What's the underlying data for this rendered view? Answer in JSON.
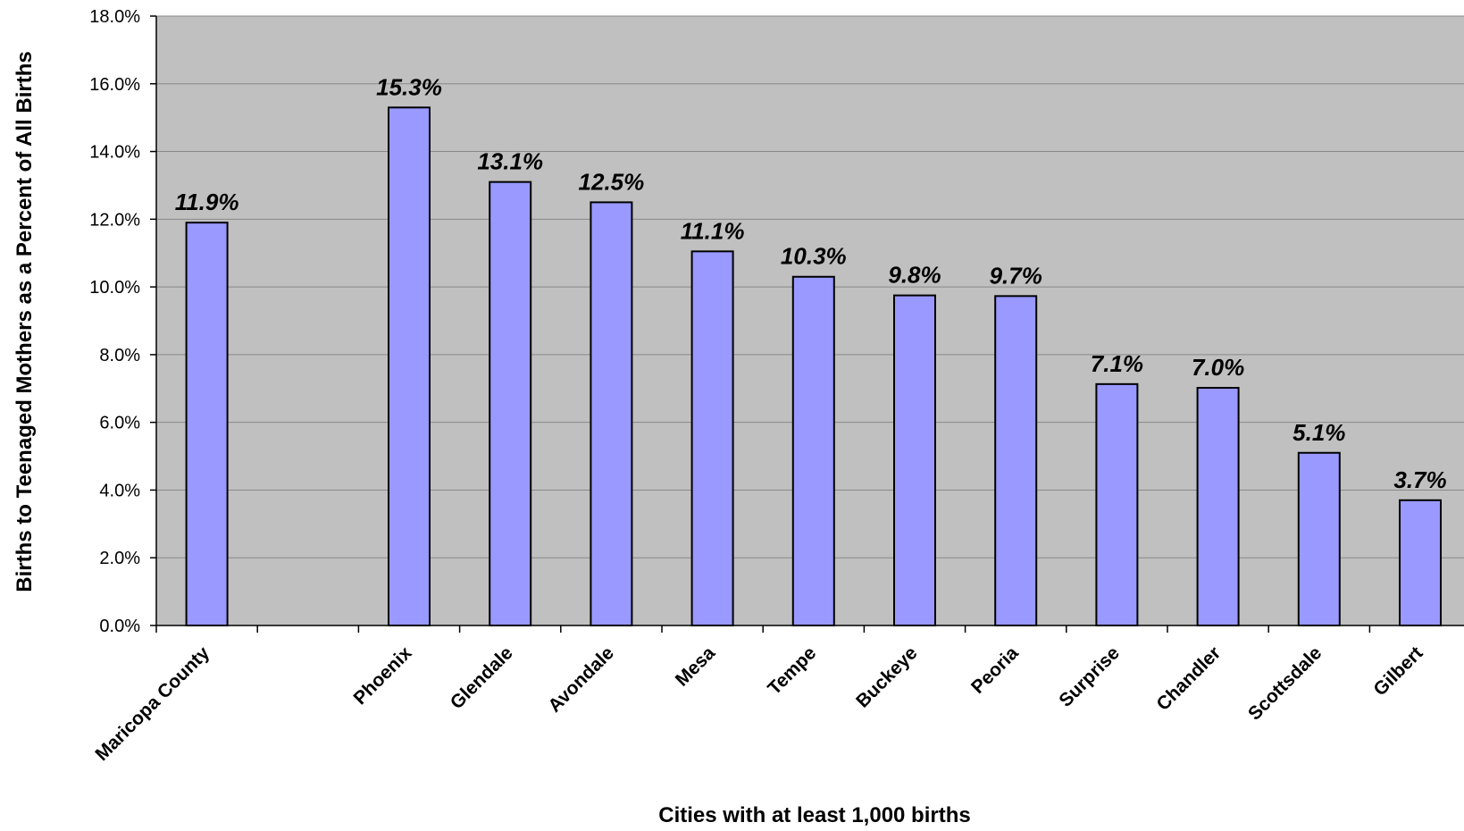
{
  "chart_data": {
    "type": "bar",
    "categories": [
      "Maricopa County",
      "",
      "Phoenix",
      "Glendale",
      "Avondale",
      "Mesa",
      "Tempe",
      "Buckeye",
      "Peoria",
      "Surprise",
      "Chandler",
      "Scottsdale",
      "Gilbert"
    ],
    "values": [
      11.9,
      null,
      15.3,
      13.1,
      12.5,
      11.05,
      10.3,
      9.75,
      9.73,
      7.13,
      7.02,
      5.1,
      3.7
    ],
    "data_labels": [
      "11.9%",
      "",
      "15.3%",
      "13.1%",
      "12.5%",
      "11.1%",
      "10.3%",
      "9.8%",
      "9.7%",
      "7.1%",
      "7.0%",
      "5.1%",
      "3.7%"
    ],
    "title": "",
    "xlabel": "Cities with at least 1,000 births",
    "ylabel": "Births to Teenaged Mothers as a Percent of All Births",
    "ylim": [
      0,
      18
    ],
    "y_ticks": [
      0,
      2,
      4,
      6,
      8,
      10,
      12,
      14,
      16,
      18
    ],
    "y_tick_labels": [
      "0.0%",
      "2.0%",
      "4.0%",
      "6.0%",
      "8.0%",
      "10.0%",
      "12.0%",
      "14.0%",
      "16.0%",
      "18.0%"
    ],
    "grid": true,
    "legend": "none",
    "colors": {
      "bar_fill": "#9999ff",
      "bar_stroke": "#000000",
      "plot_background": "#c0c0c0",
      "gridline": "#888888"
    }
  }
}
